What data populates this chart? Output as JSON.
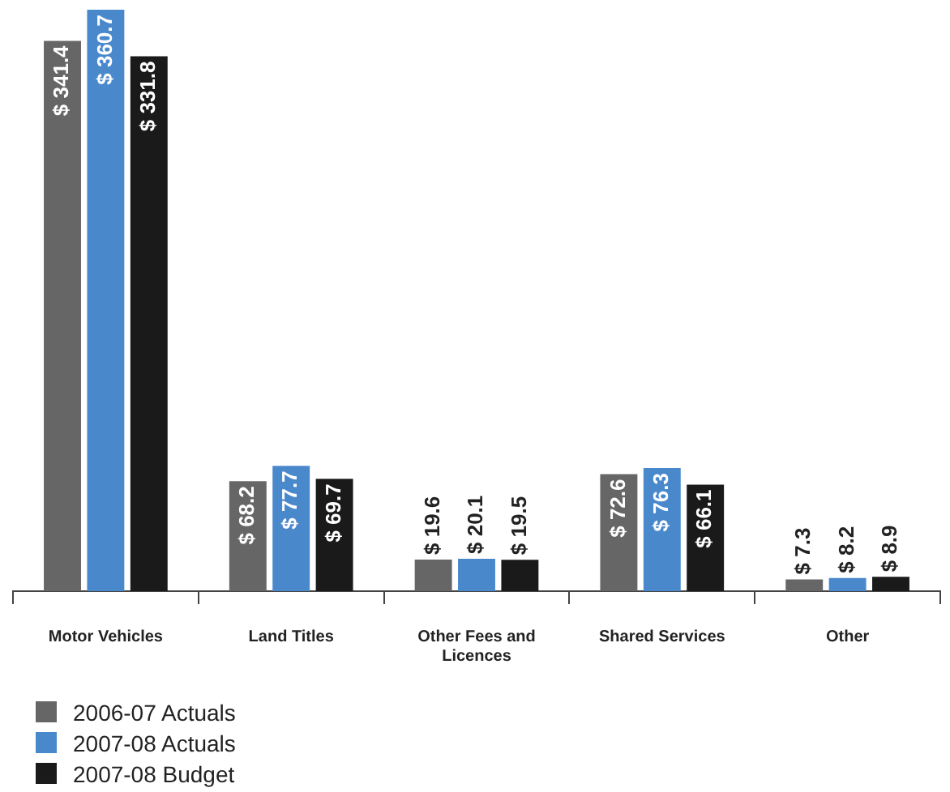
{
  "chart_data": {
    "type": "bar",
    "categories": [
      "Motor Vehicles",
      "Land Titles",
      "Other Fees and Licences",
      "Shared Services",
      "Other"
    ],
    "series": [
      {
        "name": "2006-07 Actuals",
        "color": "#666666",
        "values": [
          341.4,
          68.2,
          19.6,
          72.6,
          7.3
        ],
        "value_labels": [
          "$ 341.4",
          "$ 68.2",
          "$ 19.6",
          "$ 72.6",
          "$ 7.3"
        ]
      },
      {
        "name": "2007-08 Actuals",
        "color": "#4a88cc",
        "values": [
          360.7,
          77.7,
          20.1,
          76.3,
          8.2
        ],
        "value_labels": [
          "$ 360.7",
          "$ 77.7",
          "$ 20.1",
          "$ 76.3",
          "$ 8.2"
        ]
      },
      {
        "name": "2007-08 Budget",
        "color": "#1a1a1a",
        "values": [
          331.8,
          69.7,
          19.5,
          66.1,
          8.9
        ],
        "value_labels": [
          "$ 331.8",
          "$ 69.7",
          "$ 19.5",
          "$ 66.1",
          "$ 8.9"
        ]
      }
    ],
    "legend": "bottom left",
    "grid": false
  }
}
